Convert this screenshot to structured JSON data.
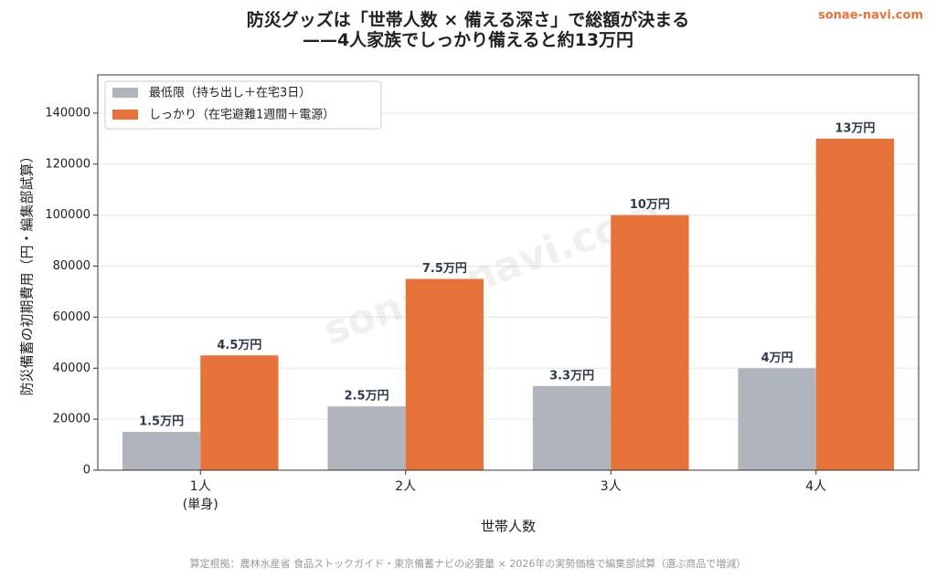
{
  "chart_data": {
    "type": "bar",
    "title": "防災グッズは「世帯人数 × 備える深さ」で総額が決まる\n——4人家族でしっかり備えると約13万円",
    "brand": "sonae-navi.com",
    "watermark": "sonae-navi.com",
    "x_label": "世帯人数",
    "y_label": "防災備蓄の初期費用（円・編集部試算）",
    "note": "算定根拠：農林水産省 食品ストックガイド・東京備蓄ナビの必要量 × 2026年の実勢価格で編集部試算（選ぶ商品で増減）",
    "categories": [
      "1人\n(単身)",
      "2人",
      "3人",
      "4人"
    ],
    "series": [
      {
        "name": "最低限（持ち出し＋在宅3日）",
        "color": "#b0b5bd",
        "values": [
          15000,
          25000,
          33000,
          40000
        ],
        "value_labels": [
          "1.5万円",
          "2.5万円",
          "3.3万円",
          "4万円"
        ]
      },
      {
        "name": "しっかり（在宅避難1週間＋電源）",
        "color": "#e8733a",
        "values": [
          45000,
          75000,
          100000,
          130000
        ],
        "value_labels": [
          "4.5万円",
          "7.5万円",
          "10万円",
          "13万円"
        ]
      }
    ],
    "ylim": [
      0,
      155000
    ],
    "yticks": [
      0,
      20000,
      40000,
      60000,
      80000,
      100000,
      120000,
      140000
    ],
    "grid": true,
    "legend": "upper left"
  }
}
